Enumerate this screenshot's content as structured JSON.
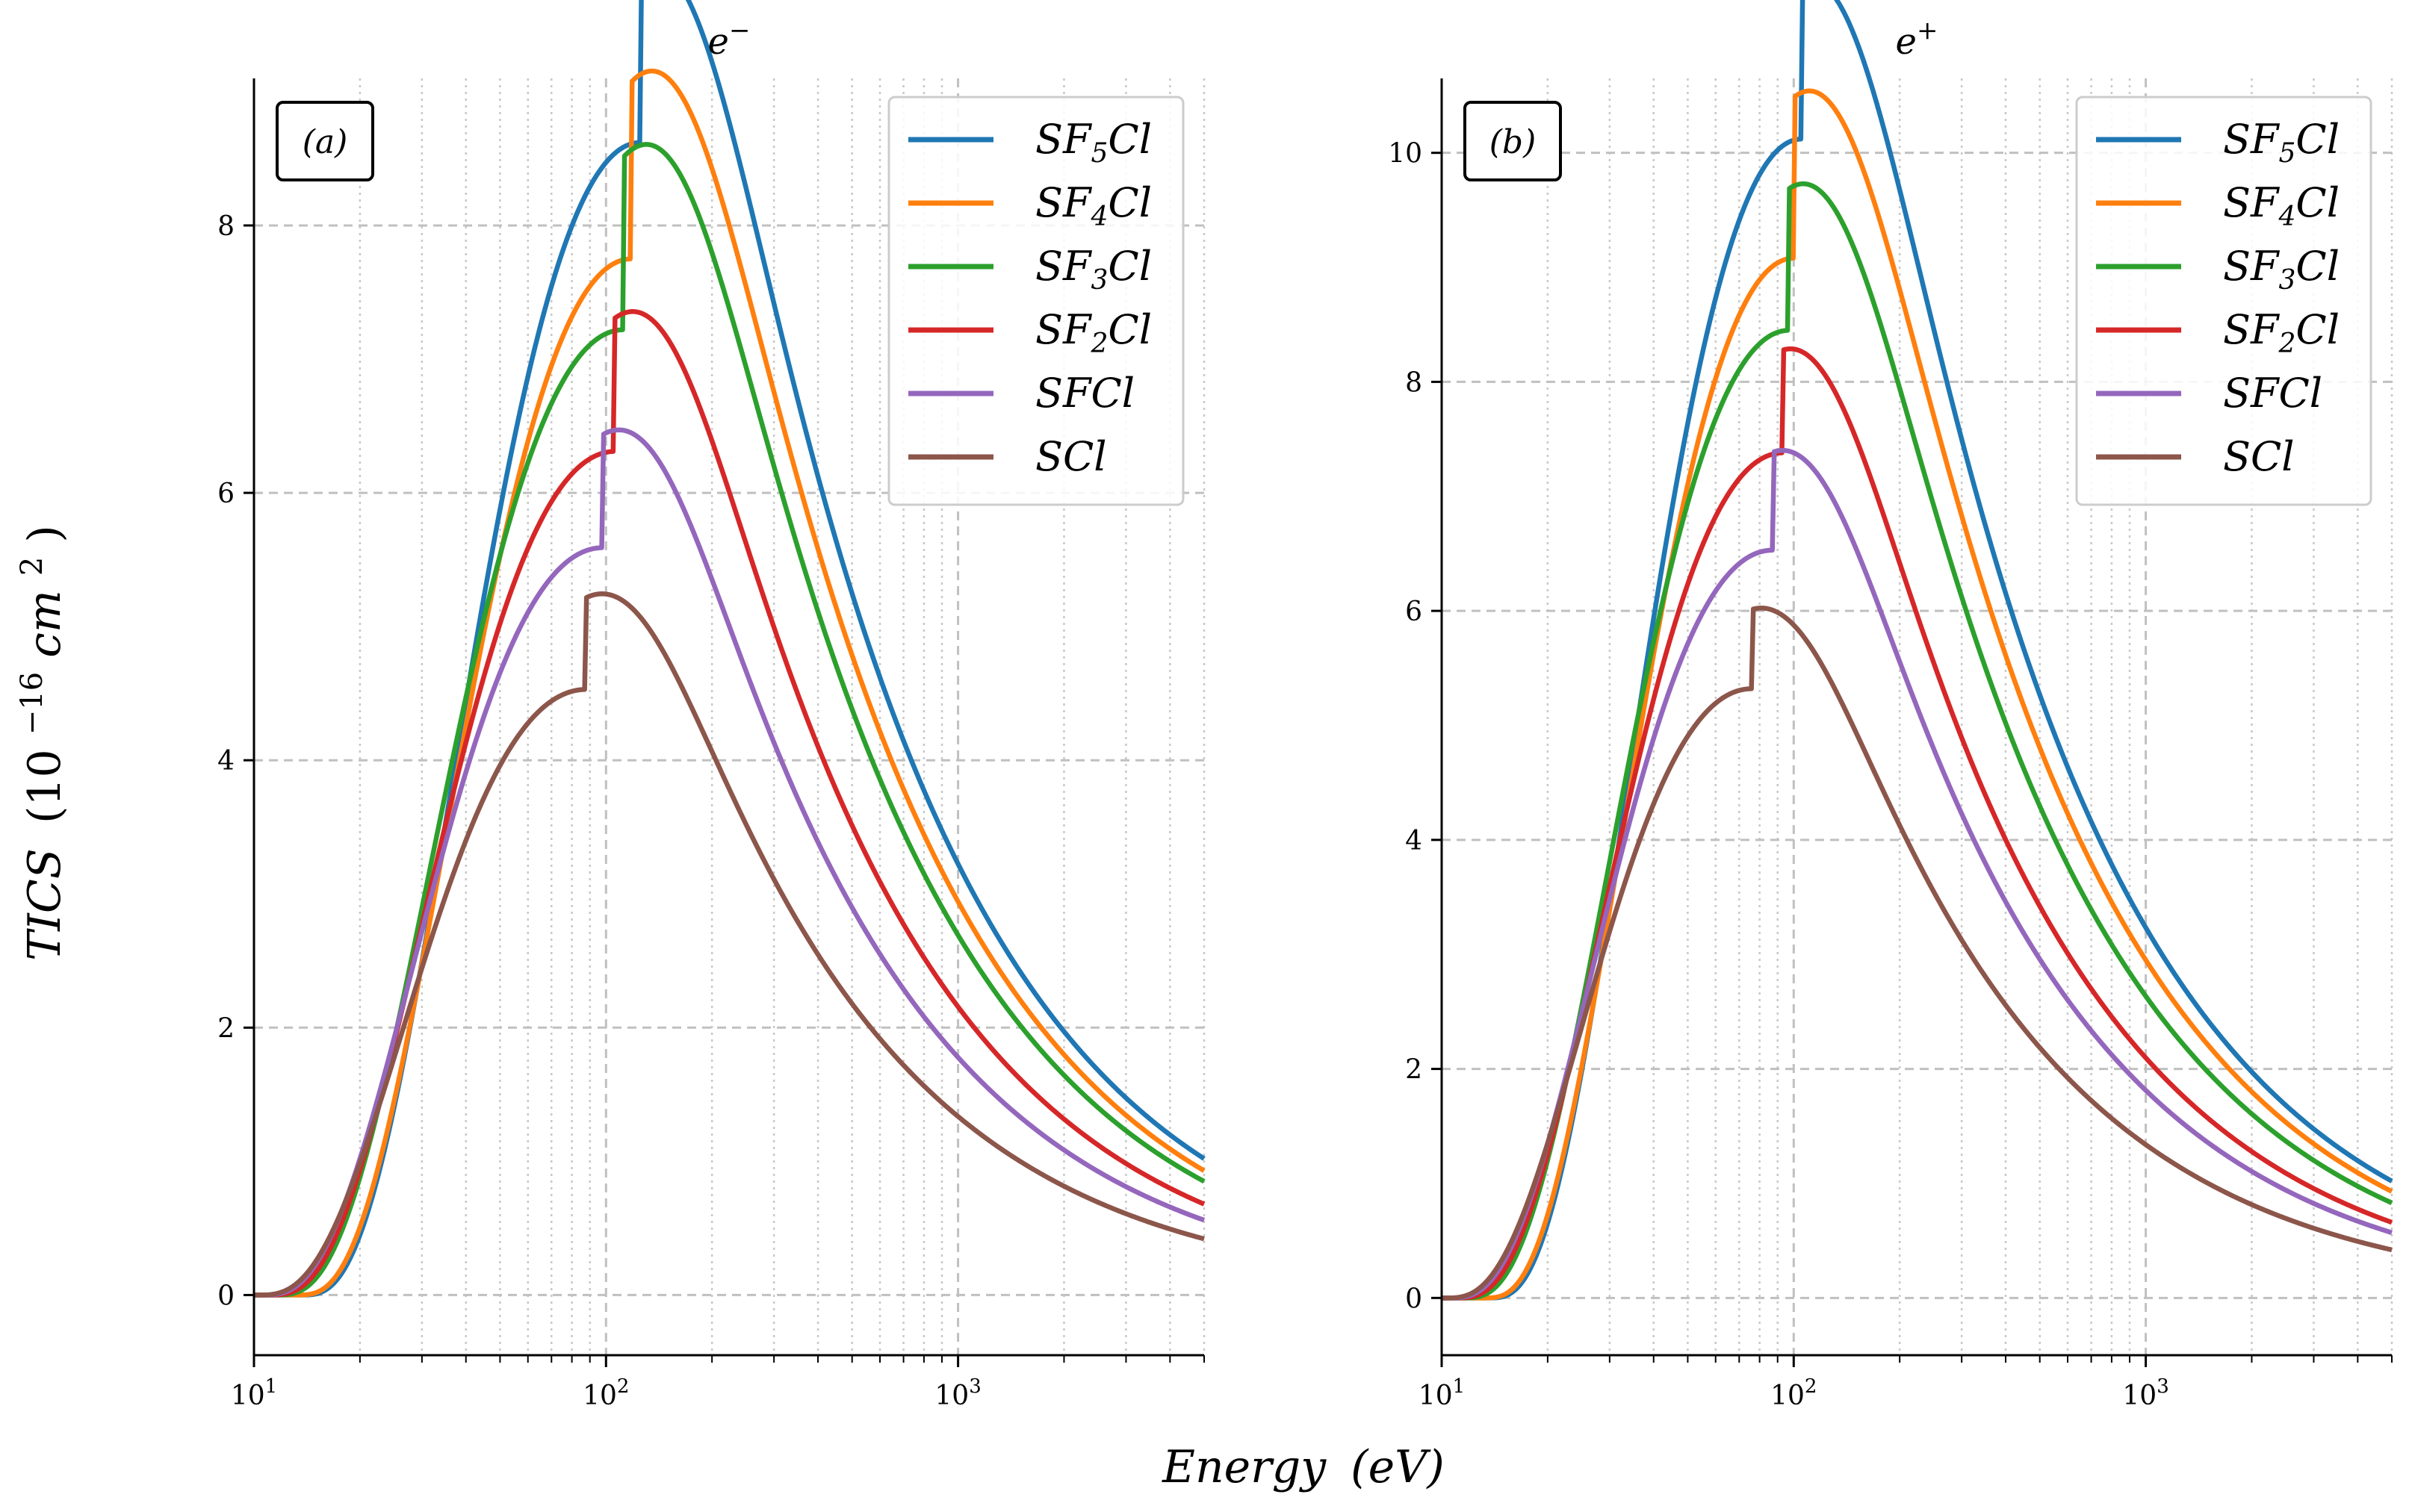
{
  "figure": {
    "ylabel_main": "TICS",
    "ylabel_unit_pre": "(10",
    "ylabel_unit_exp": "−16",
    "ylabel_unit_mid": "cm",
    "ylabel_unit_exp2": "2",
    "ylabel_unit_post": ")",
    "xlabel_main": "Energy",
    "xlabel_unit": "(eV)"
  },
  "chart_data": [
    {
      "type": "line",
      "panel": "a",
      "panel_label": "(a)",
      "title_base": "e",
      "title_sup": "−",
      "xscale": "log",
      "xlim": [
        10,
        5000
      ],
      "ylim": [
        -0.45,
        9.1
      ],
      "yticks": [
        0,
        2,
        4,
        6,
        8
      ],
      "xticks": [
        {
          "base": "10",
          "exp": "1",
          "value": 10
        },
        {
          "base": "10",
          "exp": "2",
          "value": 100
        },
        {
          "base": "10",
          "exp": "3",
          "value": 1000
        }
      ],
      "grid": true,
      "legend": "top-right",
      "series": [
        {
          "name": "SF5Cl",
          "base": "SF",
          "sub": "5",
          "tail": "Cl",
          "color": "#1f77b4",
          "peak": 8.62,
          "peak_x": 125,
          "threshold": 13.6,
          "tail_y": 1.02
        },
        {
          "name": "SF4Cl",
          "base": "SF",
          "sub": "4",
          "tail": "Cl",
          "color": "#ff7f0e",
          "peak": 7.75,
          "peak_x": 118,
          "threshold": 13.2,
          "tail_y": 0.93
        },
        {
          "name": "SF3Cl",
          "base": "SF",
          "sub": "3",
          "tail": "Cl",
          "color": "#2ca02c",
          "peak": 7.22,
          "peak_x": 112,
          "threshold": 11.5,
          "tail_y": 0.85
        },
        {
          "name": "SF2Cl",
          "base": "SF",
          "sub": "2",
          "tail": "Cl",
          "color": "#d62728",
          "peak": 6.31,
          "peak_x": 106,
          "threshold": 11.0,
          "tail_y": 0.68
        },
        {
          "name": "SFCl",
          "base": "SFCl",
          "sub": "",
          "tail": "",
          "color": "#9467bd",
          "peak": 5.59,
          "peak_x": 98,
          "threshold": 10.5,
          "tail_y": 0.56
        },
        {
          "name": "SCl",
          "base": "SCl",
          "sub": "",
          "tail": "",
          "color": "#8c564b",
          "peak": 4.53,
          "peak_x": 88,
          "threshold": 10.2,
          "tail_y": 0.42
        }
      ]
    },
    {
      "type": "line",
      "panel": "b",
      "panel_label": "(b)",
      "title_base": "e",
      "title_sup": "+",
      "xscale": "log",
      "xlim": [
        10,
        5000
      ],
      "ylim": [
        -0.5,
        10.65
      ],
      "yticks": [
        0,
        2,
        4,
        6,
        8,
        10
      ],
      "xticks": [
        {
          "base": "10",
          "exp": "1",
          "value": 10
        },
        {
          "base": "10",
          "exp": "2",
          "value": 100
        },
        {
          "base": "10",
          "exp": "3",
          "value": 1000
        }
      ],
      "grid": true,
      "legend": "top-right",
      "series": [
        {
          "name": "SF5Cl",
          "base": "SF",
          "sub": "5",
          "tail": "Cl",
          "color": "#1f77b4",
          "peak": 10.12,
          "peak_x": 105,
          "threshold": 13.6,
          "tail_y": 1.02
        },
        {
          "name": "SF4Cl",
          "base": "SF",
          "sub": "4",
          "tail": "Cl",
          "color": "#ff7f0e",
          "peak": 9.08,
          "peak_x": 100,
          "threshold": 13.2,
          "tail_y": 0.93
        },
        {
          "name": "SF3Cl",
          "base": "SF",
          "sub": "3",
          "tail": "Cl",
          "color": "#2ca02c",
          "peak": 8.45,
          "peak_x": 97,
          "threshold": 11.5,
          "tail_y": 0.83
        },
        {
          "name": "SF2Cl",
          "base": "SF",
          "sub": "2",
          "tail": "Cl",
          "color": "#d62728",
          "peak": 7.38,
          "peak_x": 93,
          "threshold": 11.0,
          "tail_y": 0.66
        },
        {
          "name": "SFCl",
          "base": "SFCl",
          "sub": "",
          "tail": "",
          "color": "#9467bd",
          "peak": 6.53,
          "peak_x": 87,
          "threshold": 10.5,
          "tail_y": 0.57
        },
        {
          "name": "SCl",
          "base": "SCl",
          "sub": "",
          "tail": "",
          "color": "#8c564b",
          "peak": 5.32,
          "peak_x": 76,
          "threshold": 10.2,
          "tail_y": 0.42
        }
      ]
    }
  ]
}
